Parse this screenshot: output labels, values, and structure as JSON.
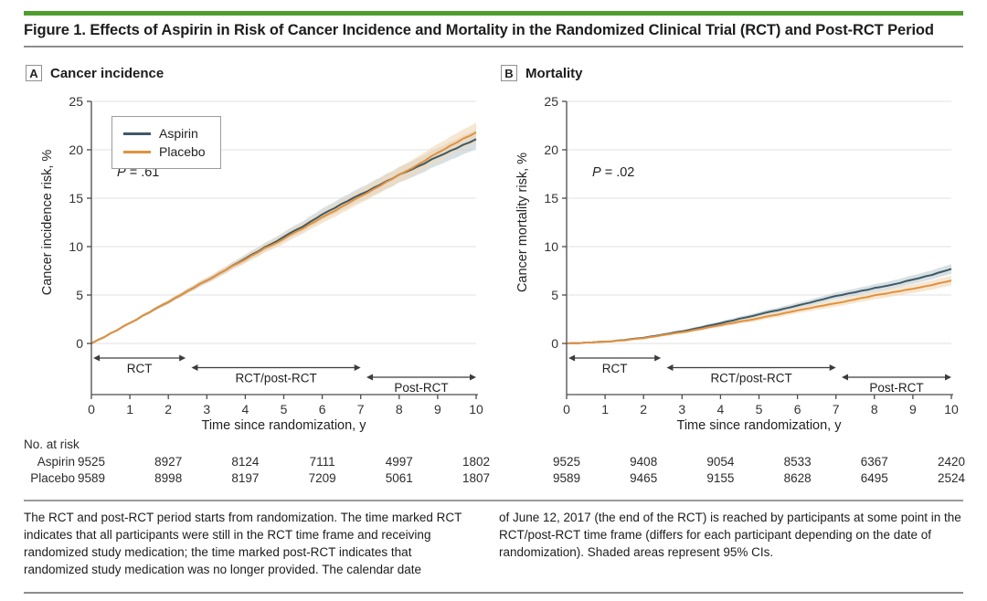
{
  "figure_title": "Figure 1. Effects of Aspirin in Risk of Cancer Incidence and Mortality in the Randomized Clinical Trial (RCT) and Post-RCT Period",
  "colors": {
    "header_green": "#4f9d31",
    "aspirin_line": "#3d5a66",
    "placebo_line": "#e2913e",
    "aspirin_band": "#b9c7cc",
    "placebo_band": "#f0d9b7",
    "axis": "#4c4c4c",
    "grid": "#e2e2e2",
    "text": "#333333"
  },
  "footnotes": {
    "left": "The RCT and post-RCT period starts from randomization. The time marked RCT indicates that all participants were still in the RCT time frame and receiving randomized study medication; the time marked post-RCT indicates that randomized study medication was no longer provided. The calendar date",
    "right": "of June 12, 2017 (the end of the RCT) is reached by participants at some point in the RCT/post-RCT time frame (differs for each participant depending on the date of randomization). Shaded areas represent 95% CIs."
  },
  "chart_data": [
    {
      "type": "line",
      "panel_label": "A",
      "panel_title": "Cancer incidence",
      "ylabel": "Cancer incidence risk, %",
      "xlabel": "Time since randomization, y",
      "p_italic": "P",
      "p_rest": " = .61",
      "ylim": [
        0,
        25
      ],
      "xlim": [
        0,
        10
      ],
      "yticks": [
        0,
        5,
        10,
        15,
        20,
        25
      ],
      "xticks": [
        0,
        1,
        2,
        3,
        4,
        5,
        6,
        7,
        8,
        9,
        10
      ],
      "grid": true,
      "legend_position": "upper-left",
      "x": [
        0,
        0.5,
        1,
        1.5,
        2,
        2.5,
        3,
        3.5,
        4,
        4.5,
        5,
        5.5,
        6,
        6.5,
        7,
        7.5,
        8,
        8.5,
        9,
        9.5,
        10
      ],
      "series": [
        {
          "name": "Aspirin",
          "values": [
            0,
            1.0,
            2.1,
            3.2,
            4.3,
            5.4,
            6.5,
            7.6,
            8.8,
            9.9,
            11.0,
            12.1,
            13.3,
            14.4,
            15.4,
            16.4,
            17.4,
            18.3,
            19.3,
            20.2,
            21.1
          ],
          "ci_halfwidth": [
            0,
            0.05,
            0.1,
            0.15,
            0.2,
            0.25,
            0.3,
            0.35,
            0.4,
            0.45,
            0.5,
            0.55,
            0.6,
            0.65,
            0.7,
            0.75,
            0.8,
            0.85,
            0.9,
            0.95,
            1.0
          ]
        },
        {
          "name": "Placebo",
          "values": [
            0,
            1.0,
            2.1,
            3.2,
            4.3,
            5.4,
            6.5,
            7.6,
            8.7,
            9.8,
            10.8,
            11.9,
            13.0,
            14.1,
            15.2,
            16.3,
            17.4,
            18.5,
            19.7,
            20.8,
            21.8
          ],
          "ci_halfwidth": [
            0,
            0.05,
            0.1,
            0.15,
            0.2,
            0.25,
            0.3,
            0.35,
            0.4,
            0.45,
            0.5,
            0.55,
            0.6,
            0.65,
            0.7,
            0.75,
            0.8,
            0.85,
            0.9,
            0.95,
            1.0
          ]
        }
      ],
      "period_arrows": [
        {
          "label": "RCT",
          "from": 0.05,
          "to": 2.45
        },
        {
          "label": "RCT/post-RCT",
          "from": 2.6,
          "to": 7.0
        },
        {
          "label": "Post-RCT",
          "from": 7.15,
          "to": 10
        }
      ],
      "at_risk": {
        "header": "No. at risk",
        "years": [
          0,
          2,
          4,
          6,
          8,
          10
        ],
        "rows": [
          {
            "label": "Aspirin",
            "values": [
              "9525",
              "8927",
              "8124",
              "7111",
              "4997",
              "1802"
            ]
          },
          {
            "label": "Placebo",
            "values": [
              "9589",
              "8998",
              "8197",
              "7209",
              "5061",
              "1807"
            ]
          }
        ]
      }
    },
    {
      "type": "line",
      "panel_label": "B",
      "panel_title": "Mortality",
      "ylabel": "Cancer mortality risk, %",
      "xlabel": "Time since randomization, y",
      "p_italic": "P",
      "p_rest": " = .02",
      "ylim": [
        0,
        25
      ],
      "xlim": [
        0,
        10
      ],
      "yticks": [
        0,
        5,
        10,
        15,
        20,
        25
      ],
      "xticks": [
        0,
        1,
        2,
        3,
        4,
        5,
        6,
        7,
        8,
        9,
        10
      ],
      "grid": true,
      "legend_position": "none",
      "x": [
        0,
        0.5,
        1,
        1.5,
        2,
        2.5,
        3,
        3.5,
        4,
        4.5,
        5,
        5.5,
        6,
        6.5,
        7,
        7.5,
        8,
        8.5,
        9,
        9.5,
        10
      ],
      "series": [
        {
          "name": "Aspirin",
          "values": [
            0,
            0.07,
            0.18,
            0.35,
            0.6,
            0.9,
            1.25,
            1.65,
            2.1,
            2.55,
            3.0,
            3.45,
            3.9,
            4.4,
            4.9,
            5.3,
            5.7,
            6.1,
            6.6,
            7.1,
            7.7
          ],
          "ci_halfwidth": [
            0,
            0.02,
            0.05,
            0.07,
            0.1,
            0.12,
            0.15,
            0.17,
            0.2,
            0.22,
            0.25,
            0.27,
            0.3,
            0.32,
            0.35,
            0.37,
            0.4,
            0.42,
            0.45,
            0.47,
            0.5
          ]
        },
        {
          "name": "Placebo",
          "values": [
            0,
            0.07,
            0.17,
            0.32,
            0.55,
            0.85,
            1.15,
            1.5,
            1.9,
            2.25,
            2.6,
            3.0,
            3.4,
            3.8,
            4.15,
            4.55,
            4.95,
            5.3,
            5.65,
            6.05,
            6.5
          ],
          "ci_halfwidth": [
            0,
            0.02,
            0.05,
            0.07,
            0.1,
            0.12,
            0.15,
            0.17,
            0.2,
            0.22,
            0.25,
            0.27,
            0.3,
            0.32,
            0.35,
            0.37,
            0.4,
            0.42,
            0.45,
            0.47,
            0.5
          ]
        }
      ],
      "period_arrows": [
        {
          "label": "RCT",
          "from": 0.05,
          "to": 2.45
        },
        {
          "label": "RCT/post-RCT",
          "from": 2.6,
          "to": 7.0
        },
        {
          "label": "Post-RCT",
          "from": 7.15,
          "to": 10
        }
      ],
      "at_risk": {
        "header": "",
        "years": [
          0,
          2,
          4,
          6,
          8,
          10
        ],
        "rows": [
          {
            "label": "",
            "values": [
              "9525",
              "9408",
              "9054",
              "8533",
              "6367",
              "2420"
            ]
          },
          {
            "label": "",
            "values": [
              "9589",
              "9465",
              "9155",
              "8628",
              "6495",
              "2524"
            ]
          }
        ]
      }
    }
  ]
}
